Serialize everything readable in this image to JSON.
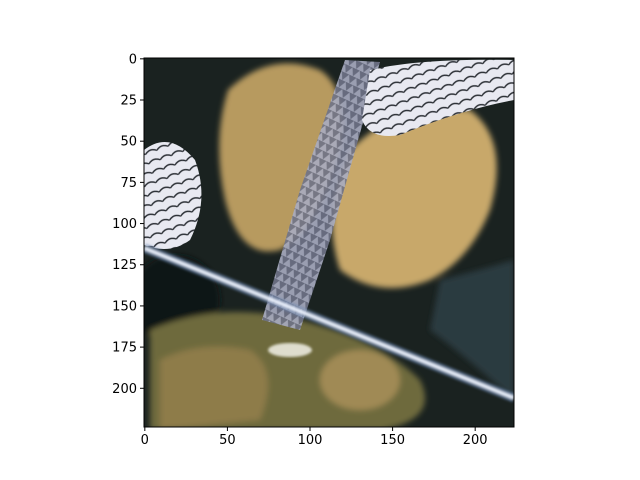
{
  "chart_data": {
    "type": "image",
    "title": "",
    "xlabel": "",
    "ylabel": "",
    "image_size": [
      224,
      224
    ],
    "xlim": [
      -0.5,
      223.5
    ],
    "ylim": [
      223.5,
      -0.5
    ],
    "x_ticks": [
      0,
      50,
      100,
      150,
      200
    ],
    "y_ticks": [
      0,
      25,
      50,
      75,
      100,
      125,
      150,
      175,
      200
    ],
    "x_tick_labels": [
      "0",
      "50",
      "100",
      "150",
      "200"
    ],
    "y_tick_labels": [
      "0",
      "25",
      "50",
      "75",
      "100",
      "125",
      "150",
      "175",
      "200"
    ],
    "grid": false,
    "content": "abstract generated texture: tan/olive organic shapes, grey-blue spiky band, white-blue diagonal streak on dark background",
    "colors": {
      "background": "#1a2220",
      "tan": "#b79a5e",
      "tan_light": "#d8b878",
      "olive": "#6e6a3e",
      "spike_grey": "#8a8ea8",
      "white_patch": "#e6e8f0",
      "streak": "#dfe9ff",
      "dark": "#0d1414"
    }
  }
}
